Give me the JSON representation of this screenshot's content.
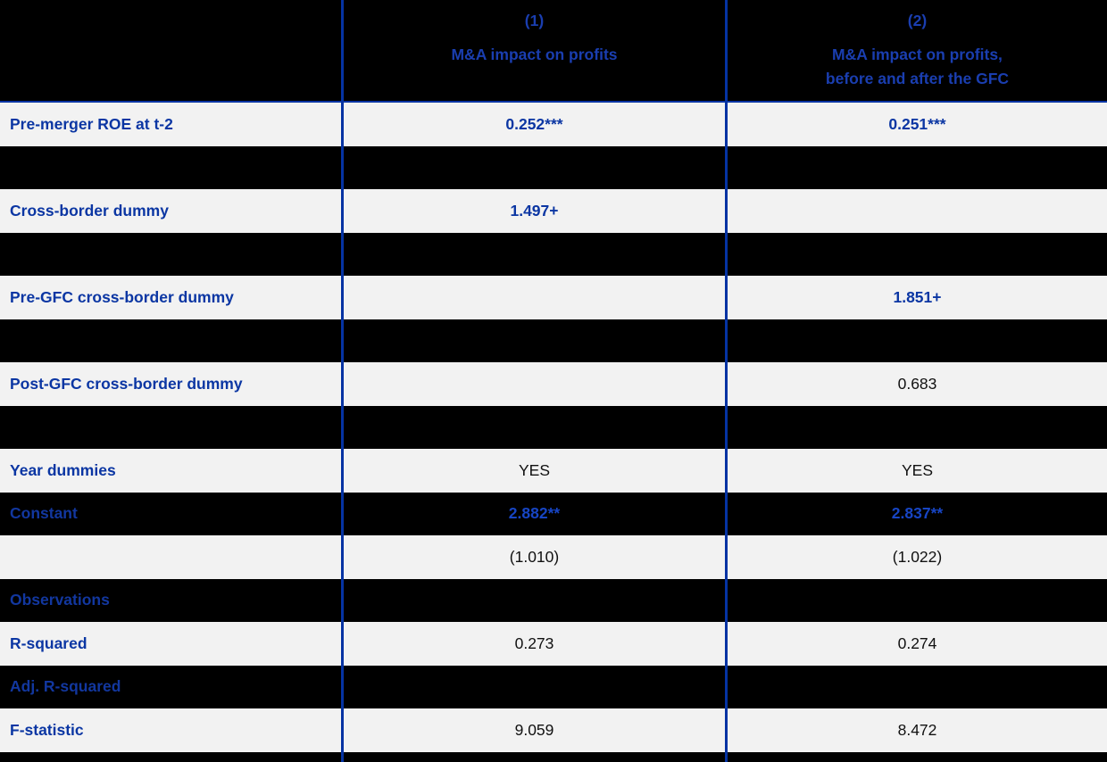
{
  "table": {
    "columns": [
      {
        "id": "(1)",
        "title": "M&A impact on profits"
      },
      {
        "id": "(2)",
        "title": "M&A impact on profits,\nbefore and after the GFC"
      }
    ],
    "rows": [
      {
        "label": "Pre-merger ROE at t-2",
        "c1": "0.252***",
        "c2": "0.251***"
      },
      {
        "label": "",
        "c1": "",
        "c2": ""
      },
      {
        "label": "Cross-border dummy",
        "c1": "1.497+",
        "c2": ""
      },
      {
        "label": "",
        "c1": "",
        "c2": ""
      },
      {
        "label": "Pre-GFC cross-border dummy",
        "c1": "",
        "c2": "1.851+"
      },
      {
        "label": "",
        "c1": "",
        "c2": ""
      },
      {
        "label": "Post-GFC cross-border dummy",
        "c1": "",
        "c2": "0.683"
      },
      {
        "label": "",
        "c1": "",
        "c2": ""
      },
      {
        "label": "Year dummies",
        "c1": "YES",
        "c2": "YES"
      },
      {
        "label": "Constant",
        "c1": "2.882**",
        "c2": "2.837**"
      },
      {
        "label": "",
        "c1": "(1.010)",
        "c2": "(1.022)"
      },
      {
        "label": "Observations",
        "c1": "",
        "c2": ""
      },
      {
        "label": "R-squared",
        "c1": "0.273",
        "c2": "0.274"
      },
      {
        "label": "Adj. R-squared",
        "c1": "",
        "c2": ""
      },
      {
        "label": "F-statistic",
        "c1": "9.059",
        "c2": "8.472"
      }
    ],
    "significance_markers": [
      "+",
      "*",
      "**",
      "***"
    ],
    "colors": {
      "row_light_bg": "#f2f2f2",
      "row_black_bg": "#000000",
      "label_blue": "#0b36a3",
      "header_blue": "#1a3eb0",
      "on_black_value_blue": "#1745c4",
      "divider_blue": "#0533a3",
      "plain_text": "#111111"
    }
  }
}
